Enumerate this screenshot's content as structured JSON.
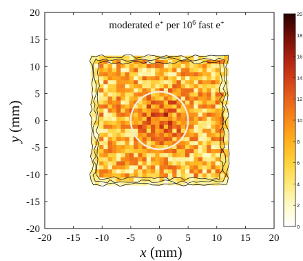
{
  "chart_data": {
    "type": "heatmap",
    "title_parts": [
      "moderated e",
      "+",
      " per 10",
      "6",
      " fast e",
      "+"
    ],
    "xlabel_var": "x",
    "xlabel_unit": "(mm)",
    "ylabel_var": "y",
    "ylabel_unit": "(mm)",
    "xlim": [
      -20,
      20
    ],
    "ylim": [
      -20,
      20
    ],
    "xticks": [
      "-20",
      "-15",
      "-10",
      "-5",
      "0",
      "5",
      "10",
      "15",
      "20"
    ],
    "yticks": [
      "-20",
      "-15",
      "-10",
      "-5",
      "0",
      "5",
      "10",
      "15",
      "20"
    ],
    "colorbar": {
      "range": [
        0,
        20
      ],
      "ticks": [
        "0",
        "2",
        "4",
        "6",
        "8",
        "10",
        "12",
        "14",
        "16",
        "18",
        "20"
      ],
      "colors": [
        "#ffffff",
        "#fffbc8",
        "#ffe97a",
        "#ffd23c",
        "#ffb11d",
        "#f98a1a",
        "#e8621a",
        "#cf3d17",
        "#a8200f",
        "#6e0c06",
        "#2a0200"
      ]
    },
    "data_region": {
      "x": [
        -12,
        12
      ],
      "y": [
        -12,
        12
      ]
    },
    "circle": {
      "center": [
        0,
        0
      ],
      "radius": 5,
      "color": "#f4ecd8"
    },
    "grid": false,
    "colorbar_placement": "right"
  }
}
